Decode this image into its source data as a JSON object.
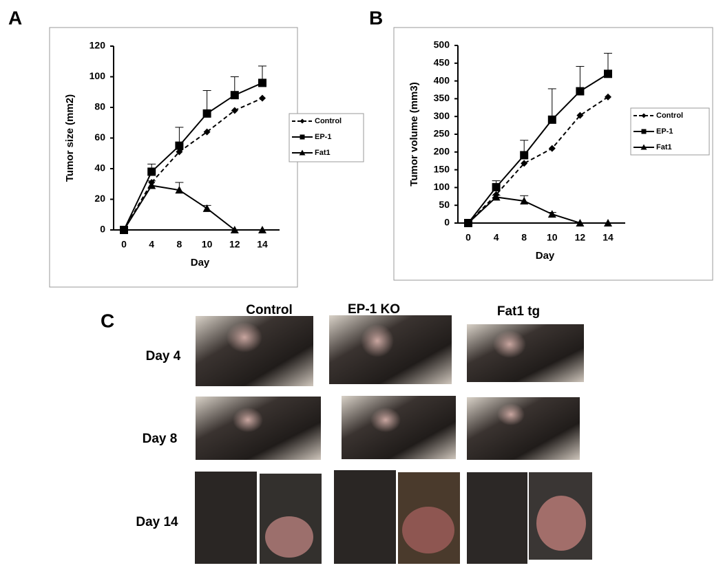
{
  "panel_labels": [
    "A",
    "B",
    "C"
  ],
  "photo_grid": {
    "columns": [
      "Control",
      "EP-1 KO",
      "Fat1 tg"
    ],
    "rows": [
      "Day 4",
      "Day 8",
      "Day 14"
    ]
  },
  "chart_data": [
    {
      "type": "line",
      "x_label": "Day",
      "y_label": "Tumor size (mm2)",
      "categories": [
        "0",
        "4",
        "8",
        "10",
        "12",
        "14"
      ],
      "ylim": [
        0,
        120
      ],
      "yticks": [
        0,
        20,
        40,
        60,
        80,
        100,
        120
      ],
      "legend": "right",
      "series": [
        {
          "name": "Control",
          "color": "#000000",
          "dashed": true,
          "marker": "diamond",
          "values": [
            0,
            31,
            51,
            64,
            78,
            86
          ]
        },
        {
          "name": "EP-1",
          "color": "#000000",
          "dashed": false,
          "marker": "square",
          "values": [
            0,
            38,
            55,
            76,
            88,
            96
          ],
          "errors": [
            0,
            5,
            12,
            15,
            12,
            11
          ]
        },
        {
          "name": "Fat1",
          "color": "#000000",
          "dashed": false,
          "marker": "triangle",
          "values": [
            0,
            29,
            26,
            14,
            0,
            0
          ],
          "errors": [
            0,
            3,
            5,
            2,
            0,
            0
          ]
        }
      ]
    },
    {
      "type": "line",
      "x_label": "Day",
      "y_label": "Tumor volume (mm3)",
      "categories": [
        "0",
        "4",
        "8",
        "10",
        "12",
        "14"
      ],
      "ylim": [
        0,
        500
      ],
      "yticks": [
        0,
        50,
        100,
        150,
        200,
        250,
        300,
        350,
        400,
        450,
        500
      ],
      "legend": "right",
      "series": [
        {
          "name": "Control",
          "color": "#000000",
          "dashed": true,
          "marker": "diamond",
          "values": [
            0,
            80,
            168,
            210,
            303,
            355
          ]
        },
        {
          "name": "EP-1",
          "color": "#000000",
          "dashed": false,
          "marker": "square",
          "values": [
            0,
            101,
            191,
            291,
            371,
            420
          ],
          "errors": [
            0,
            18,
            42,
            87,
            70,
            58
          ]
        },
        {
          "name": "Fat1",
          "color": "#000000",
          "dashed": false,
          "marker": "triangle",
          "values": [
            0,
            73,
            62,
            25,
            0,
            0
          ],
          "errors": [
            0,
            5,
            15,
            5,
            0,
            0
          ]
        }
      ]
    }
  ]
}
